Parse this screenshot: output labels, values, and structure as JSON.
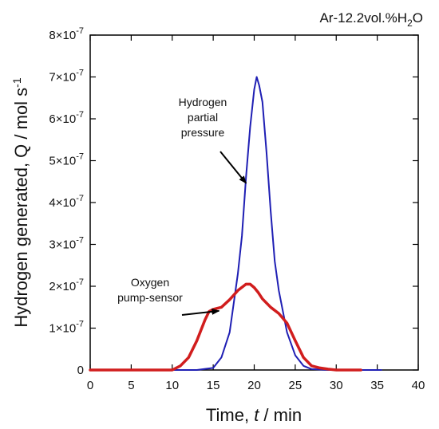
{
  "chart_data": {
    "type": "line",
    "condition_label": "Ar-12.2vol.%H2O",
    "xlabel": {
      "text": "Time, ",
      "var": "t",
      "unit": " / min"
    },
    "ylabel": "Hydrogen generated, Q / mol s-1",
    "xlim": [
      0,
      40
    ],
    "ylim": [
      0,
      8e-07
    ],
    "x_ticks": [
      0,
      5,
      10,
      15,
      20,
      25,
      30,
      35,
      40
    ],
    "y_ticks": [
      0,
      1e-07,
      2e-07,
      3e-07,
      4e-07,
      5e-07,
      6e-07,
      7e-07,
      8e-07
    ],
    "y_tick_labels": [
      "0",
      "1×10-7",
      "2×10-7",
      "3×10-7",
      "4×10-7",
      "5×10-7",
      "6×10-7",
      "7×10-7",
      "8×10-7"
    ],
    "grid": false,
    "series": [
      {
        "name": "Hydrogen partial pressure",
        "color": "#1f1fb4",
        "x": [
          0,
          13,
          15,
          16,
          17,
          18,
          18.5,
          19,
          19.5,
          20,
          20.3,
          20.6,
          21,
          21.5,
          22,
          22.5,
          23,
          24,
          25,
          26,
          27,
          29,
          35.5
        ],
        "y": [
          0,
          0,
          5e-09,
          3e-08,
          9e-08,
          2.3e-07,
          3.2e-07,
          4.6e-07,
          5.8e-07,
          6.7e-07,
          7e-07,
          6.8e-07,
          6.4e-07,
          5.2e-07,
          3.8e-07,
          2.6e-07,
          1.9e-07,
          9e-08,
          3.5e-08,
          1e-08,
          2e-09,
          0,
          0
        ]
      },
      {
        "name": "Oxygen pump-sensor",
        "color": "#d11d1d",
        "x": [
          0,
          10,
          11,
          12,
          13,
          14,
          14.5,
          15,
          16,
          17,
          18,
          19,
          19.5,
          20,
          20.5,
          21,
          22,
          23,
          24,
          25,
          26,
          27,
          28,
          29,
          30,
          33
        ],
        "y": [
          0,
          0,
          1e-08,
          3e-08,
          7e-08,
          1.2e-07,
          1.4e-07,
          1.45e-07,
          1.5e-07,
          1.68e-07,
          1.9e-07,
          2.05e-07,
          2.05e-07,
          1.97e-07,
          1.85e-07,
          1.7e-07,
          1.5e-07,
          1.35e-07,
          1.12e-07,
          7e-08,
          3e-08,
          1e-08,
          5e-09,
          2e-09,
          0,
          0
        ]
      }
    ],
    "annotations": [
      {
        "lines": [
          "Hydrogen",
          "partial",
          "pressure"
        ],
        "series": "Hydrogen partial pressure",
        "arrow_to": [
          19.3,
          4.5e-07
        ]
      },
      {
        "lines": [
          "Oxygen",
          "pump-sensor"
        ],
        "series": "Oxygen pump-sensor",
        "arrow_to": [
          16.0,
          1.45e-07
        ]
      }
    ]
  }
}
